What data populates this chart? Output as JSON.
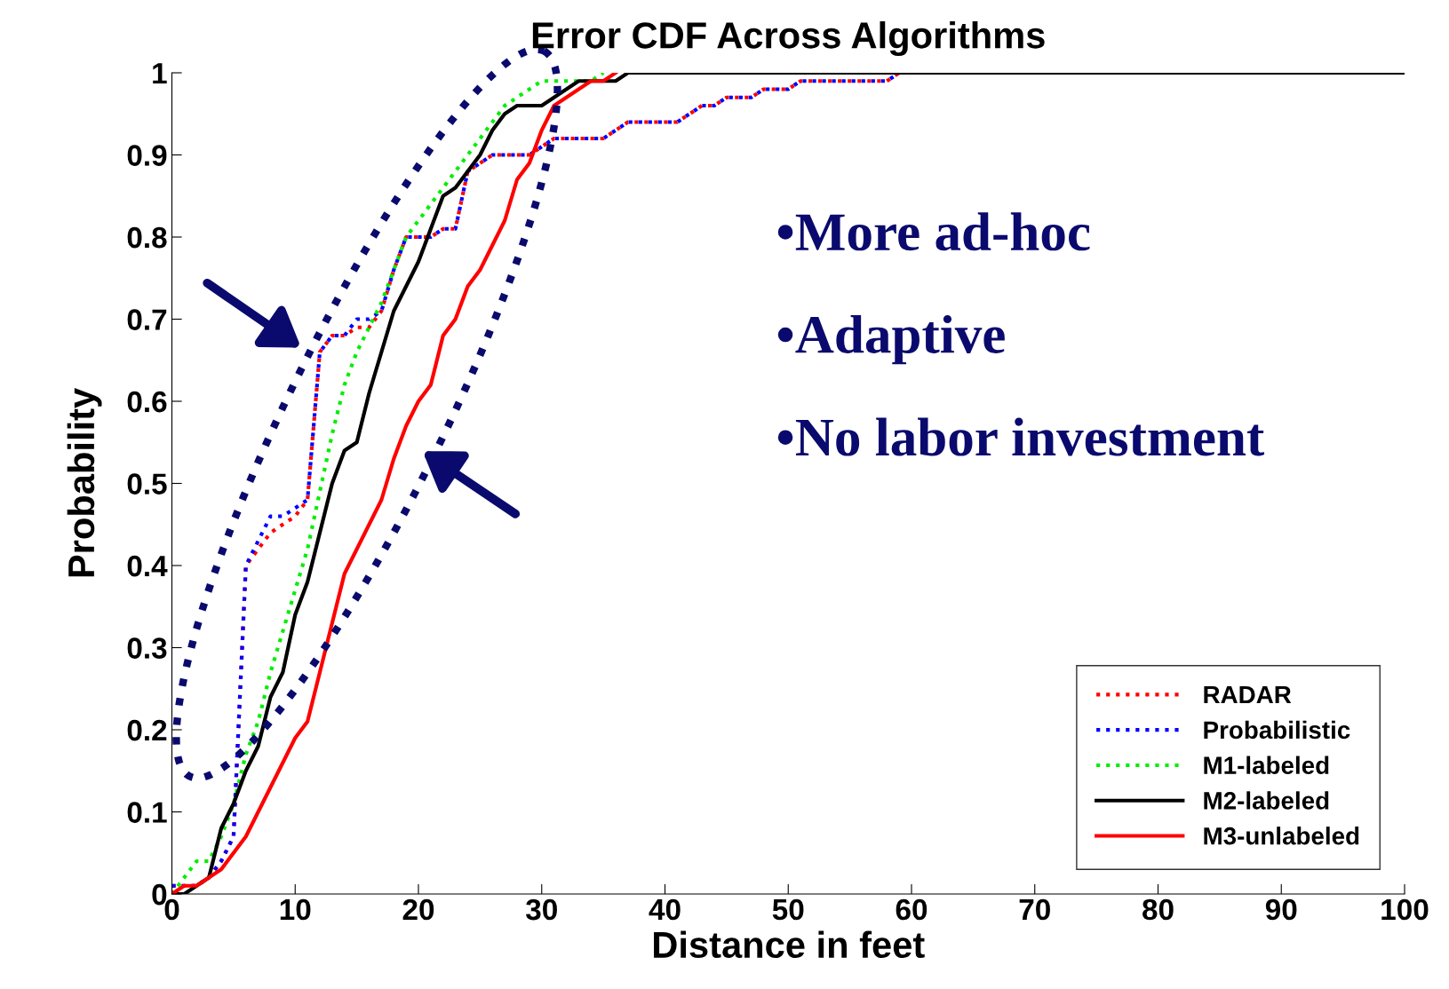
{
  "chart_data": {
    "type": "line",
    "title": "Error CDF Across Algorithms",
    "xlabel": "Distance in feet",
    "ylabel": "Probability",
    "xlim": [
      0,
      100
    ],
    "xticks": [
      0,
      10,
      20,
      30,
      40,
      50,
      60,
      70,
      80,
      90,
      100
    ],
    "ylim": [
      0,
      1
    ],
    "yticks": [
      0,
      0.1,
      0.2,
      0.3,
      0.4,
      0.5,
      0.6,
      0.7,
      0.8,
      0.9,
      1
    ],
    "grid": false,
    "legend": "bottom right",
    "annotations": [
      "•More ad-hoc",
      "•Adaptive",
      "•No labor investment"
    ],
    "series": [
      {
        "name": "RADAR",
        "color": "#ff0000",
        "line_style": "dotted",
        "x": [
          0,
          1,
          2,
          3,
          4,
          5,
          6,
          7,
          8,
          9,
          10,
          11,
          12,
          13,
          14,
          15,
          16,
          17,
          18,
          19,
          20,
          21,
          22,
          23,
          24,
          25,
          26,
          27,
          28,
          29,
          30,
          31,
          32,
          33,
          34,
          35,
          36,
          37,
          38,
          39,
          40,
          41,
          42,
          43,
          44,
          45,
          46,
          47,
          48,
          49,
          50,
          51,
          52,
          53,
          54,
          55,
          56,
          57,
          58,
          59
        ],
        "values": [
          0.01,
          0.01,
          0.01,
          0.02,
          0.04,
          0.07,
          0.4,
          0.42,
          0.44,
          0.45,
          0.46,
          0.48,
          0.66,
          0.68,
          0.68,
          0.69,
          0.69,
          0.71,
          0.76,
          0.8,
          0.8,
          0.8,
          0.81,
          0.81,
          0.88,
          0.89,
          0.9,
          0.9,
          0.9,
          0.9,
          0.91,
          0.92,
          0.92,
          0.92,
          0.92,
          0.92,
          0.93,
          0.94,
          0.94,
          0.94,
          0.94,
          0.94,
          0.95,
          0.96,
          0.96,
          0.97,
          0.97,
          0.97,
          0.98,
          0.98,
          0.98,
          0.99,
          0.99,
          0.99,
          0.99,
          0.99,
          0.99,
          0.99,
          0.99,
          1
        ]
      },
      {
        "name": "Probabilistic",
        "color": "#0000ff",
        "line_style": "dotted",
        "x": [
          0,
          1,
          2,
          3,
          4,
          5,
          6,
          7,
          8,
          9,
          10,
          11,
          12,
          13,
          14,
          15,
          16,
          17,
          18,
          19,
          20,
          21,
          22,
          23,
          24,
          25,
          26,
          27,
          28,
          29,
          30,
          31,
          32,
          33,
          34,
          35,
          36,
          37,
          38,
          39,
          40,
          41,
          42,
          43,
          44,
          45,
          46,
          47,
          48,
          49,
          50,
          51,
          52,
          53,
          54,
          55,
          56,
          57,
          58,
          59
        ],
        "values": [
          0.01,
          0.01,
          0.01,
          0.02,
          0.04,
          0.07,
          0.4,
          0.43,
          0.46,
          0.46,
          0.47,
          0.48,
          0.66,
          0.68,
          0.68,
          0.7,
          0.7,
          0.71,
          0.76,
          0.8,
          0.8,
          0.8,
          0.81,
          0.81,
          0.88,
          0.89,
          0.9,
          0.9,
          0.9,
          0.9,
          0.91,
          0.92,
          0.92,
          0.92,
          0.92,
          0.92,
          0.93,
          0.94,
          0.94,
          0.94,
          0.94,
          0.94,
          0.95,
          0.96,
          0.96,
          0.97,
          0.97,
          0.97,
          0.98,
          0.98,
          0.98,
          0.99,
          0.99,
          0.99,
          0.99,
          0.99,
          0.99,
          0.99,
          0.99,
          1
        ]
      },
      {
        "name": "M1-labeled",
        "color": "#00ee00",
        "line_style": "dotted",
        "x": [
          0,
          1,
          2,
          3,
          4,
          5,
          6,
          7,
          8,
          9,
          10,
          11,
          12,
          13,
          14,
          15,
          16,
          17,
          18,
          19,
          20,
          21,
          22,
          23,
          24,
          25,
          26,
          27,
          28,
          29,
          30,
          31,
          32,
          33,
          34,
          35
        ],
        "values": [
          0,
          0.02,
          0.04,
          0.04,
          0.07,
          0.11,
          0.17,
          0.21,
          0.27,
          0.32,
          0.37,
          0.42,
          0.49,
          0.56,
          0.62,
          0.66,
          0.69,
          0.72,
          0.76,
          0.8,
          0.82,
          0.84,
          0.86,
          0.88,
          0.9,
          0.92,
          0.94,
          0.96,
          0.97,
          0.98,
          0.99,
          0.99,
          0.99,
          0.99,
          0.99,
          1
        ]
      },
      {
        "name": "M2-labeled",
        "color": "#000000",
        "line_style": "solid",
        "x": [
          0,
          1,
          2,
          3,
          4,
          5,
          6,
          7,
          8,
          9,
          10,
          11,
          12,
          13,
          14,
          15,
          16,
          17,
          18,
          19,
          20,
          21,
          22,
          23,
          24,
          25,
          26,
          27,
          28,
          29,
          30,
          31,
          32,
          33,
          34,
          35,
          36,
          37,
          100
        ],
        "values": [
          0,
          0,
          0.01,
          0.02,
          0.08,
          0.11,
          0.15,
          0.18,
          0.24,
          0.27,
          0.34,
          0.38,
          0.44,
          0.5,
          0.54,
          0.55,
          0.61,
          0.66,
          0.71,
          0.74,
          0.77,
          0.81,
          0.85,
          0.86,
          0.88,
          0.9,
          0.93,
          0.95,
          0.96,
          0.96,
          0.96,
          0.97,
          0.98,
          0.99,
          0.99,
          0.99,
          0.99,
          1,
          1
        ]
      },
      {
        "name": "M3-unlabeled",
        "color": "#ff0000",
        "line_style": "solid",
        "x": [
          0,
          1,
          2,
          3,
          4,
          5,
          6,
          7,
          8,
          9,
          10,
          11,
          12,
          13,
          14,
          15,
          16,
          17,
          18,
          19,
          20,
          21,
          22,
          23,
          24,
          25,
          26,
          27,
          28,
          29,
          30,
          31,
          32,
          33,
          34,
          35,
          36
        ],
        "values": [
          0,
          0.01,
          0.01,
          0.02,
          0.03,
          0.05,
          0.07,
          0.1,
          0.13,
          0.16,
          0.19,
          0.21,
          0.27,
          0.33,
          0.39,
          0.42,
          0.45,
          0.48,
          0.53,
          0.57,
          0.6,
          0.62,
          0.68,
          0.7,
          0.74,
          0.76,
          0.79,
          0.82,
          0.87,
          0.89,
          0.93,
          0.96,
          0.97,
          0.98,
          0.99,
          0.99,
          1
        ]
      }
    ]
  }
}
